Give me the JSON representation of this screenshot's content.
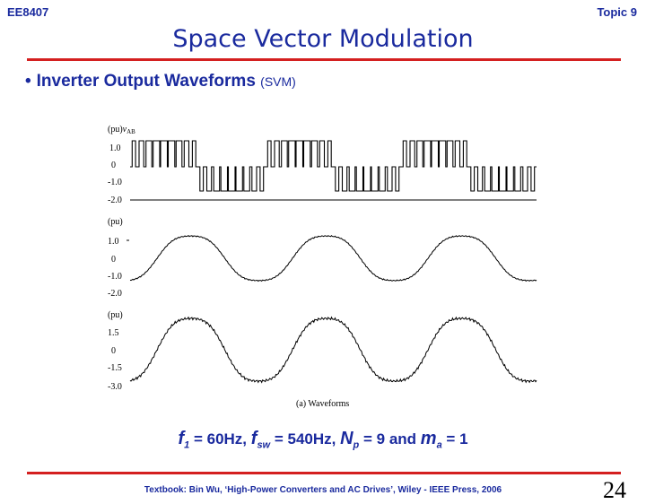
{
  "header": {
    "course": "EE8407",
    "topic": "Topic 9"
  },
  "title": "Space Vector Modulation",
  "bullet": {
    "main": "Inverter Output Waveforms",
    "sub": "(SVM)"
  },
  "figure": {
    "panel1": {
      "ylabel_prefix": "(pu)",
      "ylabel_var": "v",
      "ylabel_sub": "AB",
      "ticks": [
        "1.0",
        "0",
        "-1.0",
        "-2.0"
      ]
    },
    "panel2": {
      "ylabel": "(pu)",
      "ticks": [
        "1.0",
        "0",
        "-1.0",
        "-2.0"
      ]
    },
    "panel3": {
      "ylabel": "(pu)",
      "ticks": [
        "1.5",
        "0",
        "-1.5",
        "-3.0"
      ]
    },
    "caption": "(a)  Waveforms"
  },
  "params": {
    "f1_sym": "f",
    "f1_sub": "1",
    "f1_val": " = 60Hz,  ",
    "fsw_sym": "f",
    "fsw_sub": "sw",
    "fsw_val": " = 540Hz, ",
    "np_sym": "N",
    "np_sub": "p",
    "np_val": " = 9 and ",
    "ma_sym": "m",
    "ma_sub": "a",
    "ma_val": " = 1"
  },
  "footer": {
    "textbook": "Textbook: Bin Wu, ‘High-Power Converters and AC Drives’, Wiley - IEEE Press, 2006",
    "page": "24"
  }
}
